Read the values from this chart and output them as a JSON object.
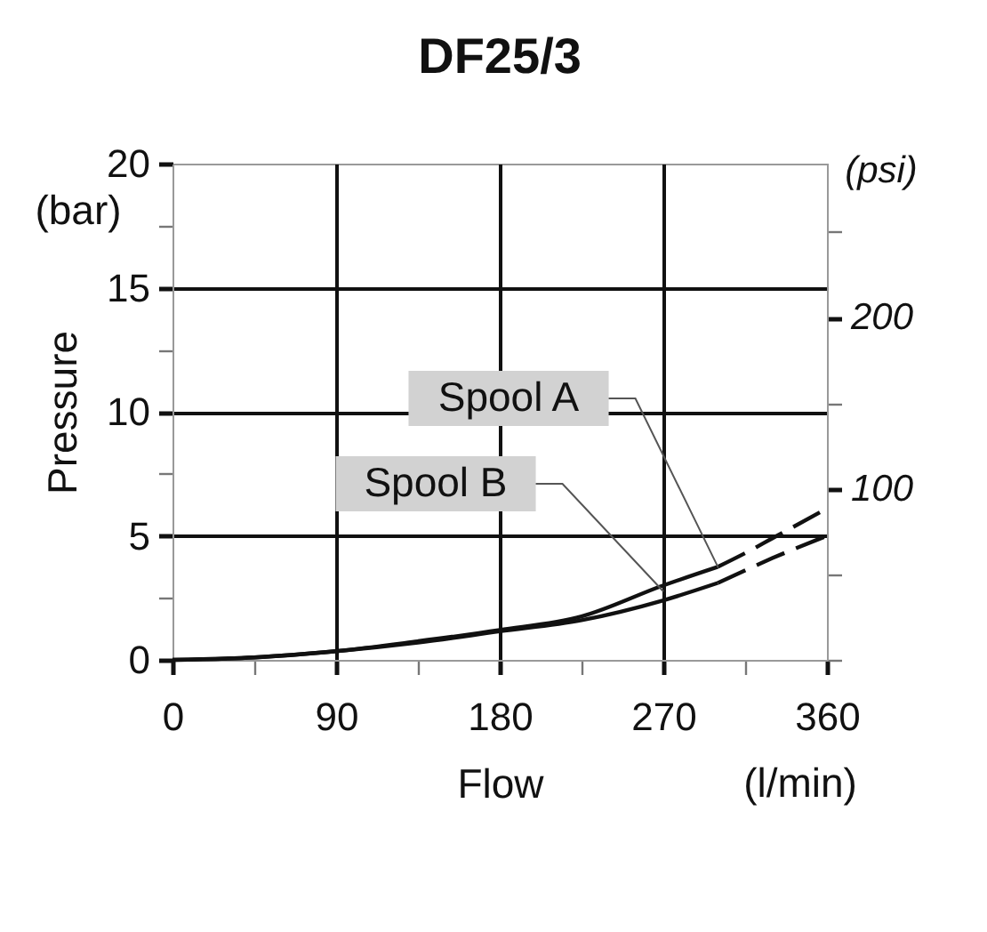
{
  "chart_data": {
    "type": "line",
    "title": "DF25/3",
    "xlabel": "Flow",
    "ylabel": "Pressure",
    "y2label": "(psi)",
    "annotations": [
      "(bar)",
      "(l/min)"
    ],
    "xlim": [
      0,
      360
    ],
    "xticks": [
      0,
      {
        "value": 45,
        "label": null
      },
      90,
      {
        "value": 135,
        "label": null
      },
      180,
      {
        "value": 225,
        "label": null
      },
      270,
      {
        "value": 315,
        "label": null
      },
      360
    ],
    "ylim": [
      0,
      20
    ],
    "yticks": [
      0,
      {
        "value": 2.5,
        "label": null
      },
      5,
      {
        "value": 7.5,
        "label": null
      },
      10,
      {
        "value": 12.5,
        "label": null
      },
      15,
      {
        "value": 17.5,
        "label": null
      },
      20
    ],
    "y2lim": [
      0,
      290
    ],
    "y2ticks": [
      {
        "value": 0,
        "label": null
      },
      {
        "value": 50,
        "label": null
      },
      100,
      {
        "value": 150,
        "label": null
      },
      200,
      {
        "value": 250,
        "label": null
      }
    ],
    "grid": true,
    "series": [
      {
        "name": "Spool A",
        "color": "#111111",
        "x": [
          0,
          45,
          90,
          135,
          180,
          225,
          270,
          300
        ],
        "values": [
          0,
          0.1,
          0.35,
          0.75,
          1.2,
          1.75,
          3.0,
          3.75
        ]
      },
      {
        "color": "#111111",
        "line_style": "dashed",
        "x": [
          300,
          315,
          330,
          360
        ],
        "values": [
          3.75,
          4.3,
          4.9,
          6.1
        ]
      },
      {
        "name": "Spool B",
        "color": "#111111",
        "x": [
          0,
          45,
          90,
          135,
          180,
          225,
          270,
          300
        ],
        "values": [
          0,
          0.1,
          0.35,
          0.7,
          1.15,
          1.6,
          2.4,
          3.1
        ]
      },
      {
        "color": "#111111",
        "line_style": "dashed",
        "x": [
          300,
          330,
          360
        ],
        "values": [
          3.1,
          4.1,
          5.0
        ]
      }
    ]
  }
}
